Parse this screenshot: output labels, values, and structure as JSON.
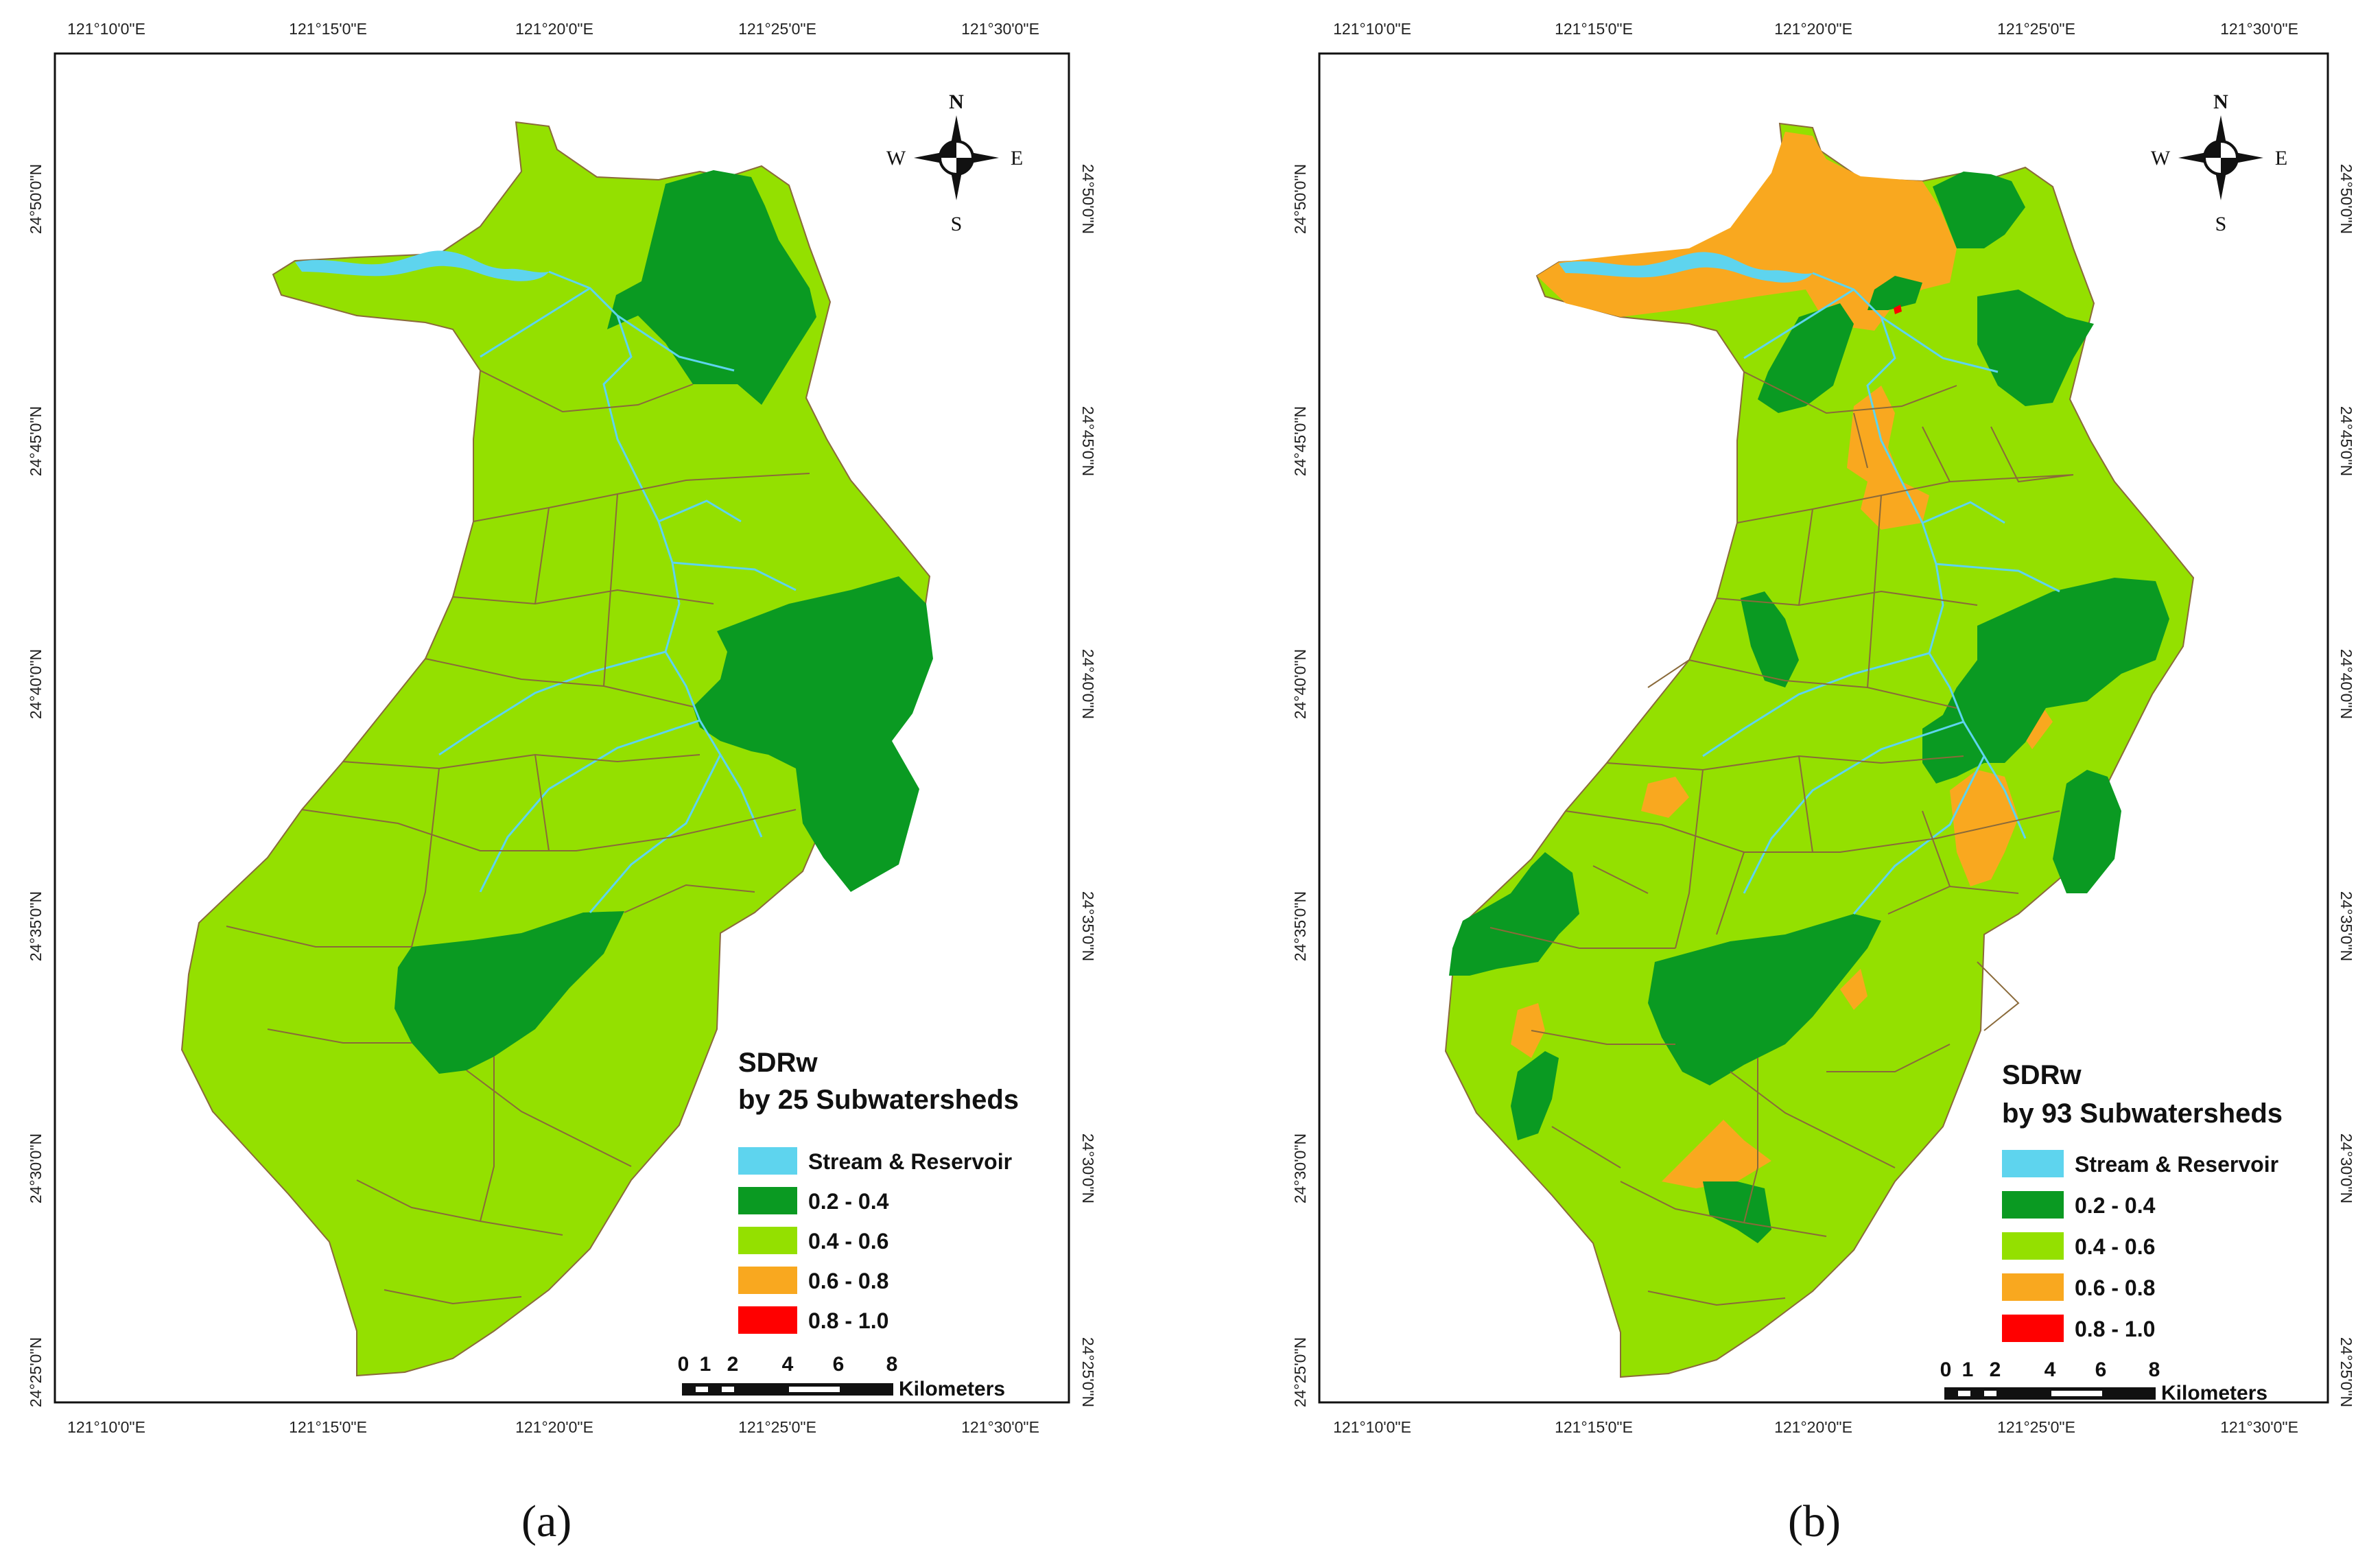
{
  "colors": {
    "stream": "#5ed4ee",
    "low": "#0a9a22",
    "mid": "#94e000",
    "high": "#f9a81f",
    "top": "#ff0000",
    "boundary": "#8a6a3a"
  },
  "axes": {
    "lon_labels": [
      "121°10'0\"E",
      "121°15'0\"E",
      "121°20'0\"E",
      "121°25'0\"E",
      "121°30'0\"E"
    ],
    "lat_labels": [
      "24°50'0\"N",
      "24°45'0\"N",
      "24°40'0\"N",
      "24°35'0\"N",
      "24°30'0\"N",
      "24°25'0\"N"
    ]
  },
  "compass": {
    "n": "N",
    "s": "S",
    "e": "E",
    "w": "W"
  },
  "legend_items": [
    {
      "label": "Stream & Reservoir",
      "color_key": "stream"
    },
    {
      "label": "0.2 - 0.4",
      "color_key": "low"
    },
    {
      "label": "0.4 - 0.6",
      "color_key": "mid"
    },
    {
      "label": "0.6 - 0.8",
      "color_key": "high"
    },
    {
      "label": "0.8 - 1.0",
      "color_key": "top"
    }
  ],
  "scalebar": {
    "ticks": [
      "0",
      "1",
      "2",
      "4",
      "6",
      "8"
    ],
    "unit": "Kilometers"
  },
  "panels": [
    {
      "caption": "(a)",
      "legend_title_1": "SDRw",
      "legend_title_2": "by 25 Subwatersheds"
    },
    {
      "caption": "(b)",
      "legend_title_1": "SDRw",
      "legend_title_2": "by 93 Subwatersheds"
    }
  ]
}
